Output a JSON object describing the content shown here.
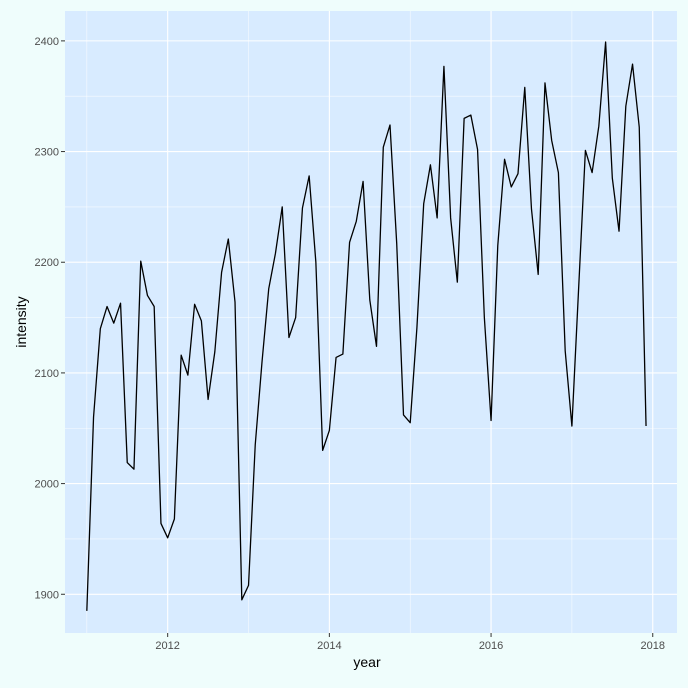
{
  "chart_data": {
    "type": "line",
    "xlabel": "year",
    "ylabel": "intensity",
    "x_ticks": [
      "2012",
      "2014",
      "2016",
      "2018"
    ],
    "y_ticks": [
      "1900",
      "2000",
      "2100",
      "2200",
      "2300",
      "2400"
    ],
    "xlim": [
      2010.73,
      2018.3
    ],
    "ylim": [
      1865,
      2427
    ],
    "grid": true,
    "colors": {
      "page": "#effdfc",
      "panel": "#d8ebff",
      "grid": "#ffffff",
      "line": "#000000"
    },
    "series": [
      {
        "x": [
          2011.0,
          2011.083,
          2011.167,
          2011.25,
          2011.333,
          2011.417,
          2011.5,
          2011.583,
          2011.667,
          2011.75,
          2011.833,
          2011.917,
          2012.0,
          2012.083,
          2012.167,
          2012.25,
          2012.333,
          2012.417,
          2012.5,
          2012.583,
          2012.667,
          2012.75,
          2012.833,
          2012.917,
          2013.0,
          2013.083,
          2013.167,
          2013.25,
          2013.333,
          2013.417,
          2013.5,
          2013.583,
          2013.667,
          2013.75,
          2013.833,
          2013.917,
          2014.0,
          2014.083,
          2014.167,
          2014.25,
          2014.333,
          2014.417,
          2014.5,
          2014.583,
          2014.667,
          2014.75,
          2014.833,
          2014.917,
          2015.0,
          2015.083,
          2015.167,
          2015.25,
          2015.333,
          2015.417,
          2015.5,
          2015.583,
          2015.667,
          2015.75,
          2015.833,
          2015.917,
          2016.0,
          2016.083,
          2016.167,
          2016.25,
          2016.333,
          2016.417,
          2016.5,
          2016.583,
          2016.667,
          2016.75,
          2016.833,
          2016.917,
          2017.0,
          2017.083,
          2017.167,
          2017.25,
          2017.333,
          2017.417,
          2017.5,
          2017.583,
          2017.667,
          2017.75,
          2017.833,
          2017.917
        ],
        "values": [
          1885,
          2060,
          2140,
          2160,
          2145,
          2163,
          2019,
          2013,
          2201,
          2170,
          2160,
          1964,
          1951,
          1968,
          2116,
          2098,
          2162,
          2147,
          2076,
          2119,
          2191,
          2221,
          2164,
          1895,
          1908,
          2035,
          2110,
          2176,
          2208,
          2250,
          2132,
          2150,
          2249,
          2278,
          2200,
          2030,
          2048,
          2114,
          2117,
          2218,
          2237,
          2273,
          2166,
          2124,
          2304,
          2324,
          2217,
          2062,
          2055,
          2141,
          2253,
          2288,
          2240,
          2377,
          2240,
          2182,
          2330,
          2333,
          2302,
          2150,
          2057,
          2215,
          2293,
          2268,
          2280,
          2358,
          2248,
          2189,
          2362,
          2310,
          2281,
          2120,
          2052,
          2176,
          2301,
          2281,
          2323,
          2399,
          2276,
          2228,
          2341,
          2379,
          2322,
          2052
        ]
      }
    ]
  }
}
